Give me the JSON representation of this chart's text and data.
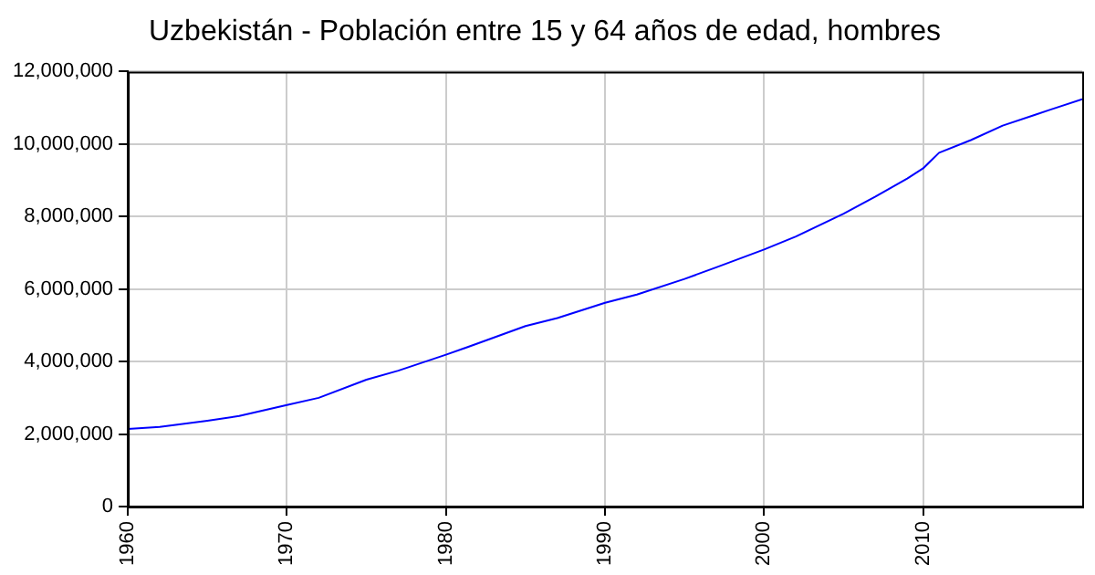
{
  "chart_data": {
    "type": "line",
    "title": "Uzbekistán - Población entre 15 y 64 años de edad, hombres",
    "x": [
      1960,
      1962,
      1965,
      1967,
      1970,
      1972,
      1975,
      1977,
      1980,
      1982,
      1985,
      1987,
      1990,
      1992,
      1995,
      1997,
      2000,
      2002,
      2005,
      2007,
      2009,
      2010,
      2011,
      2013,
      2015,
      2017,
      2018,
      2020
    ],
    "series": [
      {
        "color": "#0000ff",
        "values": [
          2140000,
          2200000,
          2370000,
          2500000,
          2800000,
          3000000,
          3500000,
          3750000,
          4190000,
          4500000,
          4980000,
          5200000,
          5620000,
          5850000,
          6280000,
          6600000,
          7090000,
          7450000,
          8080000,
          8550000,
          9050000,
          9330000,
          9760000,
          10110000,
          10510000,
          10800000,
          10950000,
          11240000
        ]
      }
    ],
    "xlim": [
      1960,
      2020
    ],
    "xticks": [
      1960,
      1970,
      1980,
      1990,
      2000,
      2010
    ],
    "ylim": [
      0,
      12000000
    ],
    "yticks": [
      0,
      {
        "value": 2000000,
        "label": "2,000,000"
      },
      {
        "value": 4000000,
        "label": "4,000,000"
      },
      {
        "value": 6000000,
        "label": "6,000,000"
      },
      {
        "value": 8000000,
        "label": "8,000,000"
      },
      {
        "value": 10000000,
        "label": "10,000,000"
      },
      {
        "value": 12000000,
        "label": "12,000,000"
      }
    ],
    "grid": true,
    "legend": false,
    "marker": "none",
    "line_style": "solid"
  }
}
